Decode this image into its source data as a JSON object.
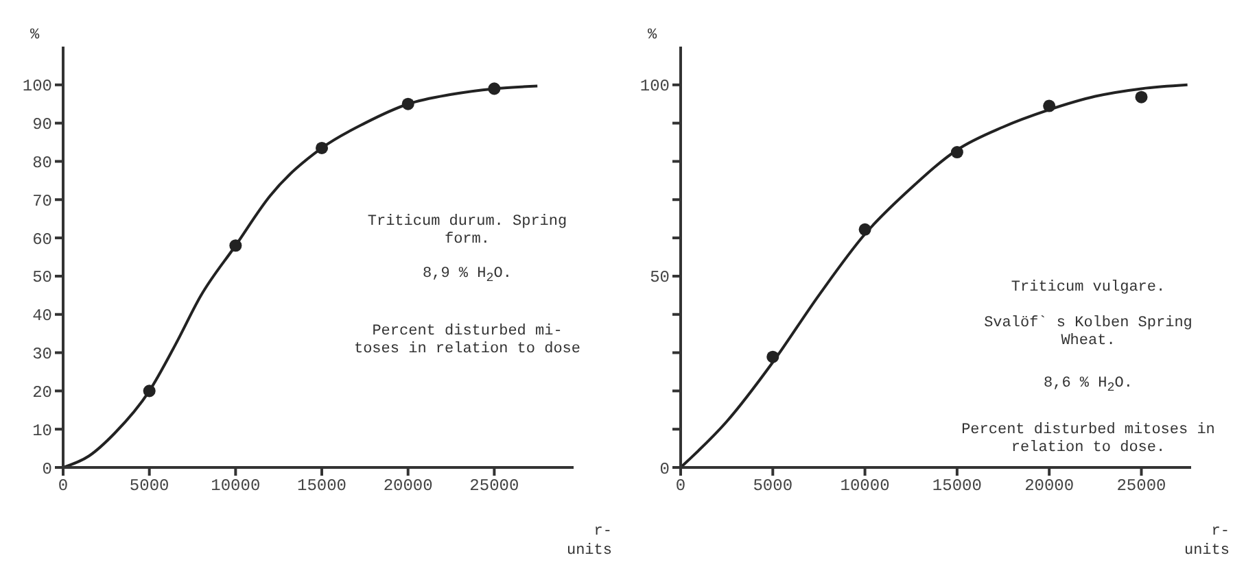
{
  "chart_data": [
    {
      "type": "scatter",
      "ylabel": "%",
      "xlabel": "r-units",
      "xlim": [
        0,
        29600
      ],
      "ylim": [
        0,
        110
      ],
      "xticks": [
        0,
        5000,
        10000,
        15000,
        20000,
        25000
      ],
      "yticks": [
        0,
        10,
        20,
        30,
        40,
        50,
        60,
        70,
        80,
        90,
        100
      ],
      "grid": false,
      "legend": false,
      "annotations": [
        "Triticum durum. Spring form.",
        "8,9 % H$_{2}$O.",
        "Percent disturbed mi- toses in relation to dose"
      ],
      "series": [
        {
          "marker": "circle",
          "color": "#222222",
          "x": [
            5000,
            10000,
            15000,
            20000,
            25000
          ],
          "values": [
            20,
            58,
            83.5,
            95,
            99
          ]
        },
        {
          "type": "line",
          "marker": "none",
          "line_style": "solid",
          "color": "#222222",
          "x": [
            0,
            1500,
            3000,
            5000,
            6500,
            8000,
            10000,
            12000,
            15000,
            17500,
            20000,
            22500,
            25000,
            27500
          ],
          "values": [
            0,
            3,
            9,
            20,
            32,
            45,
            58,
            71,
            83.5,
            90,
            95,
            97.5,
            99,
            99.7
          ]
        }
      ]
    },
    {
      "type": "scatter",
      "ylabel": "%",
      "xlabel": "r-units",
      "xlim": [
        0,
        27700
      ],
      "ylim": [
        0,
        110
      ],
      "xticks": [
        0,
        5000,
        10000,
        15000,
        20000,
        25000
      ],
      "yticks": [
        0,
        {
          "value": 10,
          "label": null
        },
        {
          "value": 20,
          "label": null
        },
        {
          "value": 30,
          "label": null
        },
        {
          "value": 40,
          "label": null
        },
        50,
        {
          "value": 60,
          "label": null
        },
        {
          "value": 70,
          "label": null
        },
        {
          "value": 80,
          "label": null
        },
        {
          "value": 90,
          "label": null
        },
        100
      ],
      "grid": false,
      "legend": false,
      "annotations": [
        "Triticum vulgare.",
        "Svalöf` s Kolben Spring Wheat.",
        "8,6 % H$_{2}$O.",
        "Percent disturbed mitoses in relation to dose."
      ],
      "series": [
        {
          "marker": "circle",
          "color": "#222222",
          "x": [
            5000,
            10000,
            15000,
            20000,
            25000
          ],
          "values": [
            28.9,
            62.2,
            82.4,
            94.5,
            96.8
          ]
        },
        {
          "type": "line",
          "marker": "none",
          "line_style": "solid",
          "color": "#222222",
          "x": [
            0,
            2500,
            5000,
            7500,
            10000,
            12500,
            15000,
            17500,
            20000,
            22500,
            25000,
            27500
          ],
          "values": [
            0,
            12,
            27.5,
            45,
            61,
            73,
            83,
            89,
            93.5,
            97,
            99,
            100
          ]
        }
      ]
    }
  ]
}
